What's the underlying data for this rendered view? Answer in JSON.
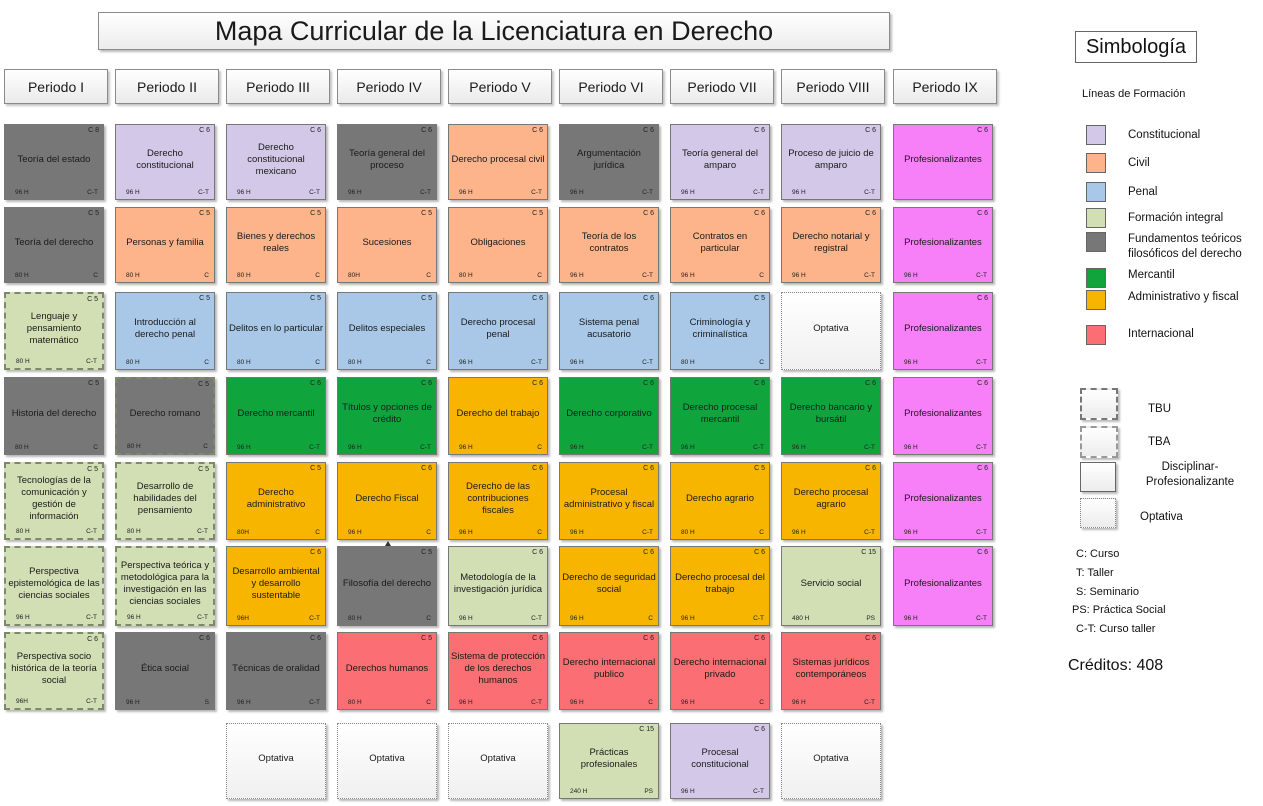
{
  "title": "Mapa Curricular de la Licenciatura en Derecho",
  "periods": [
    "Periodo I",
    "Periodo II",
    "Periodo III",
    "Periodo IV",
    "Periodo V",
    "Periodo VI",
    "Periodo VII",
    "Periodo VIII",
    "Periodo IX"
  ],
  "colors": {
    "constitucional": "#d4c8e8",
    "civil": "#fdb48b",
    "penal": "#a9c8e7",
    "formacion_integral": "#d2dfb5",
    "fundamentos": "#777777",
    "mercantil": "#10a53c",
    "administrativo": "#f8b500",
    "internacional": "#fa6e74",
    "profesionalizantes": "#f77ff7",
    "optativa": "#ffffff"
  },
  "rows": [
    [
      {
        "name": "Teoría del estado",
        "credits": "C 8",
        "hours": "96 H",
        "type": "C-T",
        "line": "fundamentos"
      },
      {
        "name": "Derecho constitucional",
        "credits": "C 6",
        "hours": "96 H",
        "type": "C-T",
        "line": "constitucional"
      },
      {
        "name": "Derecho constitucional mexicano",
        "credits": "C 6",
        "hours": "96 H",
        "type": "C-T",
        "line": "constitucional"
      },
      {
        "name": "Teoría general del proceso",
        "credits": "C 6",
        "hours": "96 H",
        "type": "C-T",
        "line": "fundamentos"
      },
      {
        "name": "Derecho procesal civil",
        "credits": "C 6",
        "hours": "96 H",
        "type": "C-T",
        "line": "civil"
      },
      {
        "name": "Argumentación jurídica",
        "credits": "C 6",
        "hours": "96 H",
        "type": "C-T",
        "line": "fundamentos"
      },
      {
        "name": "Teoría general del amparo",
        "credits": "C 6",
        "hours": "96 H",
        "type": "C-T",
        "line": "constitucional"
      },
      {
        "name": "Proceso de juicio de amparo",
        "credits": "C 6",
        "hours": "96 H",
        "type": "C-T",
        "line": "constitucional"
      },
      {
        "name": "Profesionalizantes",
        "credits": "C 6",
        "hours": "",
        "type": "",
        "line": "profesionalizantes"
      }
    ],
    [
      {
        "name": "Teoría del derecho",
        "credits": "C 5",
        "hours": "80 H",
        "type": "C",
        "line": "fundamentos"
      },
      {
        "name": "Personas y familia",
        "credits": "C 5",
        "hours": "80 H",
        "type": "C",
        "line": "civil"
      },
      {
        "name": "Bienes y derechos reales",
        "credits": "C 5",
        "hours": "80 H",
        "type": "C",
        "line": "civil"
      },
      {
        "name": "Sucesiones",
        "credits": "C 5",
        "hours": "80H",
        "type": "C",
        "line": "civil"
      },
      {
        "name": "Obligaciones",
        "credits": "C 5",
        "hours": "80 H",
        "type": "C",
        "line": "civil"
      },
      {
        "name": "Teoría de los contratos",
        "credits": "C 6",
        "hours": "96 H",
        "type": "C-T",
        "line": "civil"
      },
      {
        "name": "Contratos en particular",
        "credits": "C 6",
        "hours": "96 H",
        "type": "C",
        "line": "civil"
      },
      {
        "name": "Derecho notarial y registral",
        "credits": "C 6",
        "hours": "96 H",
        "type": "C-T",
        "line": "civil"
      },
      {
        "name": "Profesionalizantes",
        "credits": "C 6",
        "hours": "96 H",
        "type": "C-T",
        "line": "profesionalizantes"
      }
    ],
    [
      {
        "name": "Lenguaje y pensamiento matemático",
        "credits": "C 5",
        "hours": "80 H",
        "type": "C-T",
        "line": "formacion_integral",
        "border": "dashed"
      },
      {
        "name": "Introducción al derecho penal",
        "credits": "C 5",
        "hours": "80 H",
        "type": "C",
        "line": "penal"
      },
      {
        "name": "Delitos en lo particular",
        "credits": "C 5",
        "hours": "80 H",
        "type": "C",
        "line": "penal"
      },
      {
        "name": "Delitos especiales",
        "credits": "C 5",
        "hours": "80 H",
        "type": "C",
        "line": "penal"
      },
      {
        "name": "Derecho procesal penal",
        "credits": "C 6",
        "hours": "96 H",
        "type": "C-T",
        "line": "penal"
      },
      {
        "name": "Sistema penal acusatorio",
        "credits": "C 6",
        "hours": "96 H",
        "type": "C-T",
        "line": "penal"
      },
      {
        "name": "Criminología y criminalística",
        "credits": "C 5",
        "hours": "80 H",
        "type": "C",
        "line": "penal"
      },
      {
        "name": "Optativa",
        "credits": "",
        "hours": "",
        "type": "",
        "line": "optativa",
        "border": "dotted"
      },
      {
        "name": "Profesionalizantes",
        "credits": "C 6",
        "hours": "96 H",
        "type": "C-T",
        "line": "profesionalizantes"
      }
    ],
    [
      {
        "name": "Historia del derecho",
        "credits": "C 5",
        "hours": "80 H",
        "type": "C",
        "line": "fundamentos"
      },
      {
        "name": "Derecho romano",
        "credits": "C 5",
        "hours": "80 H",
        "type": "C",
        "line": "fundamentos",
        "border": "dashed"
      },
      {
        "name": "Derecho mercantil",
        "credits": "C 6",
        "hours": "96 H",
        "type": "C-T",
        "line": "mercantil"
      },
      {
        "name": "Títulos y opciones de crédito",
        "credits": "C 6",
        "hours": "96 H",
        "type": "C-T",
        "line": "mercantil"
      },
      {
        "name": "Derecho del trabajo",
        "credits": "C 6",
        "hours": "96 H",
        "type": "C",
        "line": "administrativo"
      },
      {
        "name": "Derecho corporativo",
        "credits": "C 6",
        "hours": "96 H",
        "type": "C-T",
        "line": "mercantil"
      },
      {
        "name": "Derecho procesal mercantil",
        "credits": "C 6",
        "hours": "96 H",
        "type": "C-T",
        "line": "mercantil"
      },
      {
        "name": "Derecho bancario y bursátil",
        "credits": "C 6",
        "hours": "96 H",
        "type": "C-T",
        "line": "mercantil"
      },
      {
        "name": "Profesionalizantes",
        "credits": "C 6",
        "hours": "96 H",
        "type": "C-T",
        "line": "profesionalizantes"
      }
    ],
    [
      {
        "name": "Tecnologías de la comunicación y gestión de información",
        "credits": "C 5",
        "hours": "80 H",
        "type": "C-T",
        "line": "formacion_integral",
        "border": "dashed"
      },
      {
        "name": "Desarrollo de habilidades del pensamiento",
        "credits": "C 5",
        "hours": "80 H",
        "type": "C-T",
        "line": "formacion_integral",
        "border": "dashed"
      },
      {
        "name": "Derecho administrativo",
        "credits": "C 5",
        "hours": "80H",
        "type": "C",
        "line": "administrativo"
      },
      {
        "name": "Derecho Fiscal",
        "credits": "C 6",
        "hours": "96 H",
        "type": "C",
        "line": "administrativo"
      },
      {
        "name": "Derecho de las contribuciones fiscales",
        "credits": "C 6",
        "hours": "96 H",
        "type": "C",
        "line": "administrativo"
      },
      {
        "name": "Procesal administrativo y fiscal",
        "credits": "C 6",
        "hours": "96 H",
        "type": "C-T",
        "line": "administrativo"
      },
      {
        "name": "Derecho agrario",
        "credits": "C 5",
        "hours": "80 H",
        "type": "C",
        "line": "administrativo"
      },
      {
        "name": "Derecho procesal agrario",
        "credits": "C 6",
        "hours": "96 H",
        "type": "C-T",
        "line": "administrativo"
      },
      {
        "name": "Profesionalizantes",
        "credits": "C 6",
        "hours": "96 H",
        "type": "C-T",
        "line": "profesionalizantes"
      }
    ],
    [
      {
        "name": "Perspectiva epistemológica de las ciencias sociales",
        "credits": "",
        "hours": "96 H",
        "type": "C-T",
        "line": "formacion_integral",
        "border": "dashed"
      },
      {
        "name": "Perspectiva teórica y metodológica para la investigación en las ciencias sociales",
        "credits": "",
        "hours": "96 H",
        "type": "C-T",
        "line": "formacion_integral",
        "border": "dashed"
      },
      {
        "name": "Desarrollo ambiental y desarrollo sustentable",
        "credits": "C 6",
        "hours": "96H",
        "type": "C-T",
        "line": "administrativo"
      },
      {
        "name": "Filosofía del derecho",
        "credits": "C 5",
        "hours": "80 H",
        "type": "C",
        "line": "fundamentos"
      },
      {
        "name": "Metodología de la investigación jurídica",
        "credits": "C 6",
        "hours": "96 H",
        "type": "C-T",
        "line": "formacion_integral"
      },
      {
        "name": "Derecho de seguridad social",
        "credits": "C 6",
        "hours": "96 H",
        "type": "C",
        "line": "administrativo"
      },
      {
        "name": "Derecho procesal del trabajo",
        "credits": "C 6",
        "hours": "96 H",
        "type": "C-T",
        "line": "administrativo"
      },
      {
        "name": "Servicio social",
        "credits": "C 15",
        "hours": "480 H",
        "type": "PS",
        "line": "formacion_integral"
      },
      {
        "name": "Profesionalizantes",
        "credits": "C 6",
        "hours": "96 H",
        "type": "C-T",
        "line": "profesionalizantes"
      }
    ],
    [
      {
        "name": "Perspectiva socio histórica de la teoría social",
        "credits": "C 6",
        "hours": "96H",
        "type": "C-T",
        "line": "formacion_integral",
        "border": "dashed"
      },
      {
        "name": "Ética social",
        "credits": "C 6",
        "hours": "96 H",
        "type": "S",
        "line": "fundamentos"
      },
      {
        "name": "Técnicas de oralidad",
        "credits": "C 6",
        "hours": "96 H",
        "type": "C-T",
        "line": "fundamentos"
      },
      {
        "name": "Derechos humanos",
        "credits": "C 5",
        "hours": "80 H",
        "type": "C",
        "line": "internacional"
      },
      {
        "name": "Sistema de protección de los derechos humanos",
        "credits": "C 6",
        "hours": "96 H",
        "type": "C-T",
        "line": "internacional"
      },
      {
        "name": "Derecho internacional publico",
        "credits": "C 6",
        "hours": "96 H",
        "type": "C",
        "line": "internacional"
      },
      {
        "name": "Derecho internacional privado",
        "credits": "C 6",
        "hours": "96 H",
        "type": "C",
        "line": "internacional"
      },
      {
        "name": "Sistemas jurídicos contemporáneos",
        "credits": "C 6",
        "hours": "96 H",
        "type": "C-T",
        "line": "internacional"
      },
      null
    ],
    [
      null,
      null,
      {
        "name": "Optativa",
        "credits": "",
        "hours": "",
        "type": "",
        "line": "optativa",
        "border": "dotted"
      },
      {
        "name": "Optativa",
        "credits": "",
        "hours": "",
        "type": "",
        "line": "optativa",
        "border": "dotted"
      },
      {
        "name": "Optativa",
        "credits": "",
        "hours": "",
        "type": "",
        "line": "optativa",
        "border": "dotted"
      },
      {
        "name": "Prácticas profesionales",
        "credits": "C 15",
        "hours": "240 H",
        "type": "PS",
        "line": "formacion_integral"
      },
      {
        "name": "Procesal constitucional",
        "credits": "C 6",
        "hours": "96 H",
        "type": "C-T",
        "line": "constitucional"
      },
      {
        "name": "Optativa",
        "credits": "",
        "hours": "",
        "type": "",
        "line": "optativa",
        "border": "dotted"
      },
      null
    ]
  ],
  "legend": {
    "title": "Simbología",
    "subtitle": "Líneas de Formación",
    "lines": [
      {
        "label": "Constitucional",
        "color_key": "constitucional"
      },
      {
        "label": "Civil",
        "color_key": "civil"
      },
      {
        "label": "Penal",
        "color_key": "penal"
      },
      {
        "label": "Formación integral",
        "color_key": "formacion_integral"
      },
      {
        "label": "Fundamentos teóricos filosóficos del derecho",
        "color_key": "fundamentos"
      },
      {
        "label": "Mercantil",
        "color_key": "mercantil"
      },
      {
        "label": "Administrativo y fiscal",
        "color_key": "administrativo"
      },
      {
        "label": "Internacional",
        "color_key": "internacional"
      }
    ],
    "boxes": [
      {
        "label": "TBU",
        "style": "dashed"
      },
      {
        "label": "TBA",
        "style": "dashdot"
      },
      {
        "label": "Disciplinar-Profesionalizante",
        "style": "solid"
      },
      {
        "label": "Optativa",
        "style": "dotted"
      }
    ],
    "abbreviations": [
      "C: Curso",
      "T: Taller",
      "S: Seminario",
      "PS: Práctica Social",
      "C-T: Curso taller"
    ],
    "credits": "Créditos: 408"
  }
}
